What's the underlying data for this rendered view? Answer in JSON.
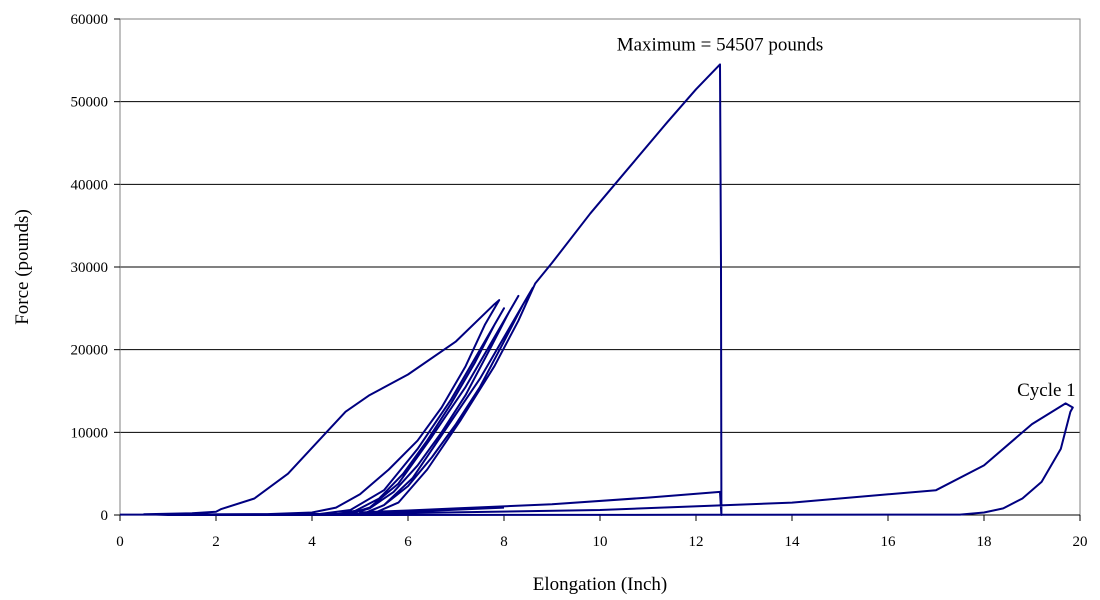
{
  "chart_data": {
    "type": "line",
    "title": "",
    "xlabel": "Elongation (Inch)",
    "ylabel": "Force (pounds)",
    "xlim": [
      0,
      20
    ],
    "ylim": [
      0,
      60000
    ],
    "x_ticks": [
      "0",
      "2",
      "4",
      "6",
      "8",
      "10",
      "12",
      "14",
      "16",
      "18",
      "20"
    ],
    "y_ticks": [
      "0",
      "10000",
      "20000",
      "30000",
      "40000",
      "50000",
      "60000"
    ],
    "grid": "horizontal",
    "legend": "none",
    "line_color": "#000080",
    "annotations": [
      {
        "text": "Maximum = 54507 pounds",
        "x": 12.5,
        "y": 54507
      },
      {
        "text": "Cycle 1",
        "x": 19.3,
        "y": 13400
      }
    ],
    "series": [
      {
        "values": [
          [
            0,
            50
          ],
          [
            5,
            150
          ],
          [
            10,
            600
          ],
          [
            14,
            1500
          ],
          [
            17,
            3000
          ],
          [
            18,
            6000
          ],
          [
            19,
            11000
          ],
          [
            19.7,
            13500
          ],
          [
            19.85,
            13000
          ],
          [
            19.8,
            12500
          ],
          [
            19.6,
            8000
          ],
          [
            19.2,
            4000
          ],
          [
            18.8,
            2000
          ],
          [
            18.4,
            800
          ],
          [
            18.0,
            300
          ],
          [
            17.5,
            50
          ],
          [
            12,
            20
          ],
          [
            8,
            10
          ],
          [
            4,
            0
          ],
          [
            1,
            0
          ],
          [
            0.5,
            80
          ],
          [
            1.5,
            200
          ],
          [
            2,
            400
          ],
          [
            2.1,
            700
          ],
          [
            2.8,
            2000
          ],
          [
            3.5,
            5000
          ],
          [
            4.3,
            10000
          ],
          [
            4.7,
            12500
          ],
          [
            5.2,
            14500
          ],
          [
            6.0,
            17000
          ],
          [
            7.0,
            21000
          ],
          [
            7.8,
            25500
          ],
          [
            7.9,
            26000
          ],
          [
            7.6,
            23000
          ],
          [
            7.2,
            18000
          ],
          [
            6.7,
            13000
          ],
          [
            6.2,
            9000
          ],
          [
            5.6,
            5500
          ],
          [
            5.0,
            2500
          ],
          [
            4.5,
            900
          ],
          [
            4.0,
            300
          ],
          [
            3.0,
            100
          ],
          [
            2.2,
            50
          ],
          [
            4.0,
            0
          ],
          [
            4.8,
            600
          ],
          [
            5.5,
            3000
          ],
          [
            6.2,
            8000
          ],
          [
            6.9,
            14000
          ],
          [
            7.5,
            20000
          ],
          [
            7.9,
            24000
          ],
          [
            8.0,
            25000
          ],
          [
            7.8,
            23000
          ],
          [
            7.4,
            18500
          ],
          [
            6.9,
            13500
          ],
          [
            6.4,
            9000
          ],
          [
            5.9,
            5000
          ],
          [
            5.4,
            2000
          ],
          [
            4.9,
            500
          ],
          [
            4.5,
            100
          ],
          [
            4.7,
            0
          ],
          [
            5.2,
            900
          ],
          [
            5.8,
            3800
          ],
          [
            6.5,
            9500
          ],
          [
            7.2,
            15500
          ],
          [
            7.8,
            21500
          ],
          [
            8.2,
            25500
          ],
          [
            8.3,
            26500
          ],
          [
            8.1,
            24500
          ],
          [
            7.7,
            20000
          ],
          [
            7.2,
            14500
          ],
          [
            6.7,
            10000
          ],
          [
            6.2,
            6000
          ],
          [
            5.7,
            2800
          ],
          [
            5.2,
            800
          ],
          [
            4.8,
            150
          ],
          [
            5.0,
            0
          ],
          [
            5.5,
            1200
          ],
          [
            6.1,
            4500
          ],
          [
            6.8,
            10500
          ],
          [
            7.5,
            16500
          ],
          [
            8.1,
            22500
          ],
          [
            8.5,
            26500
          ],
          [
            8.6,
            27500
          ],
          [
            8.4,
            25500
          ],
          [
            8.0,
            21000
          ],
          [
            7.5,
            15500
          ],
          [
            7.0,
            11000
          ],
          [
            6.5,
            7000
          ],
          [
            6.0,
            3500
          ],
          [
            5.5,
            1200
          ],
          [
            5.1,
            200
          ],
          [
            5.2,
            0
          ],
          [
            5.8,
            1500
          ],
          [
            6.4,
            5500
          ],
          [
            7.1,
            11500
          ],
          [
            7.8,
            18000
          ],
          [
            8.3,
            23500
          ],
          [
            8.65,
            28000
          ],
          [
            9.0,
            30500
          ],
          [
            9.8,
            36500
          ],
          [
            10.6,
            42000
          ],
          [
            11.4,
            47500
          ],
          [
            12.0,
            51500
          ],
          [
            12.5,
            54507
          ],
          [
            12.52,
            30000
          ],
          [
            12.53,
            0
          ],
          [
            12.5,
            2800
          ],
          [
            11.0,
            2100
          ],
          [
            9.0,
            1300
          ],
          [
            7.0,
            800
          ],
          [
            6.0,
            550
          ],
          [
            5.3,
            400
          ],
          [
            5.0,
            300
          ],
          [
            6.0,
            400
          ],
          [
            8.0,
            900
          ]
        ]
      }
    ]
  }
}
